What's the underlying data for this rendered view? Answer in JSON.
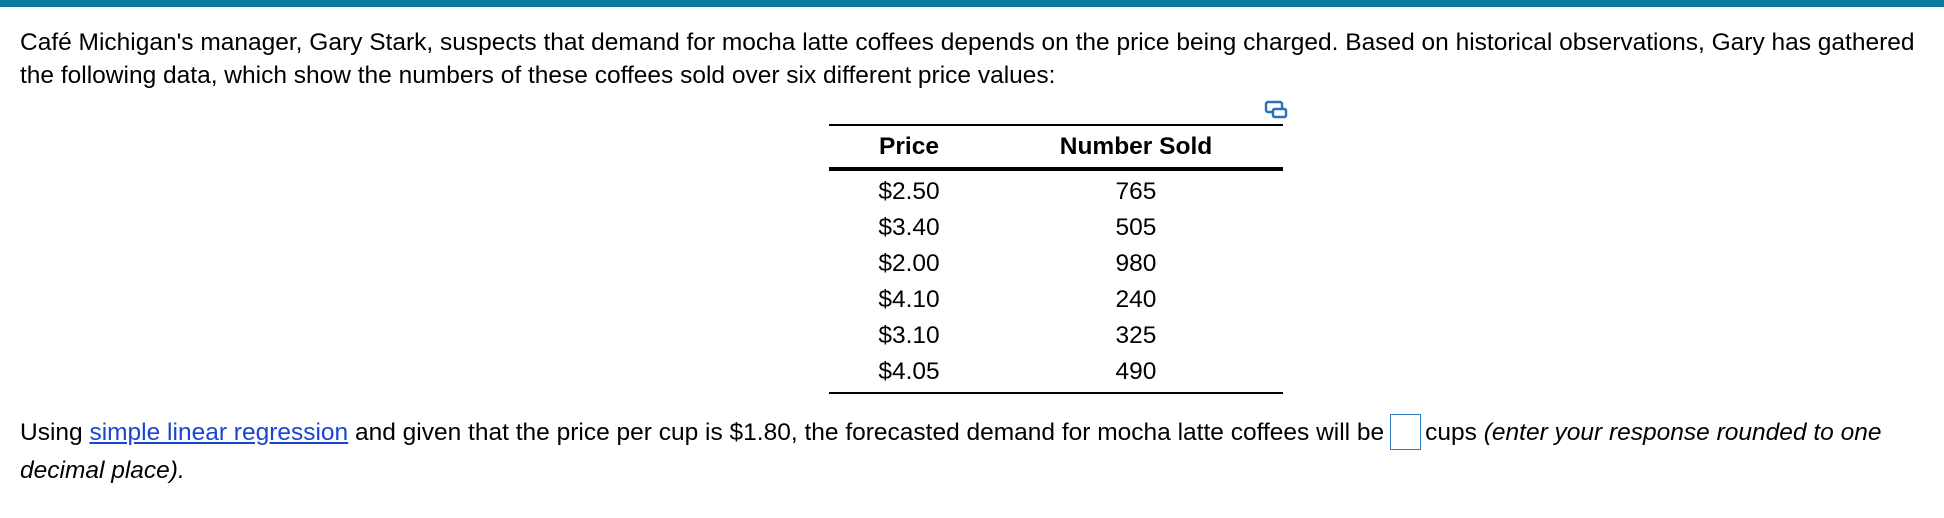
{
  "header_bar_color": "#0b7a9b",
  "intro_text": "Café Michigan's manager, Gary Stark, suspects that demand for mocha latte coffees depends on the price being charged.  Based on historical observations, Gary has gathered the following data, which show the numbers of these coffees sold over six different price values:",
  "copy_icon": "copy-data-icon",
  "table": {
    "headers": [
      "Price",
      "Number Sold"
    ],
    "rows": [
      [
        "$2.50",
        "765"
      ],
      [
        "$3.40",
        "505"
      ],
      [
        "$2.00",
        "980"
      ],
      [
        "$4.10",
        "240"
      ],
      [
        "$3.10",
        "325"
      ],
      [
        "$4.05",
        "490"
      ]
    ]
  },
  "question": {
    "prefix": "Using ",
    "link_text": "simple linear regression",
    "middle": " and given that the price per cup is $1.80, the forecasted demand for mocha latte coffees will be",
    "answer_value": "",
    "after_box": "cups ",
    "italic_note": "(enter your response rounded to one decimal place)."
  },
  "link_color": "#1a44d6"
}
